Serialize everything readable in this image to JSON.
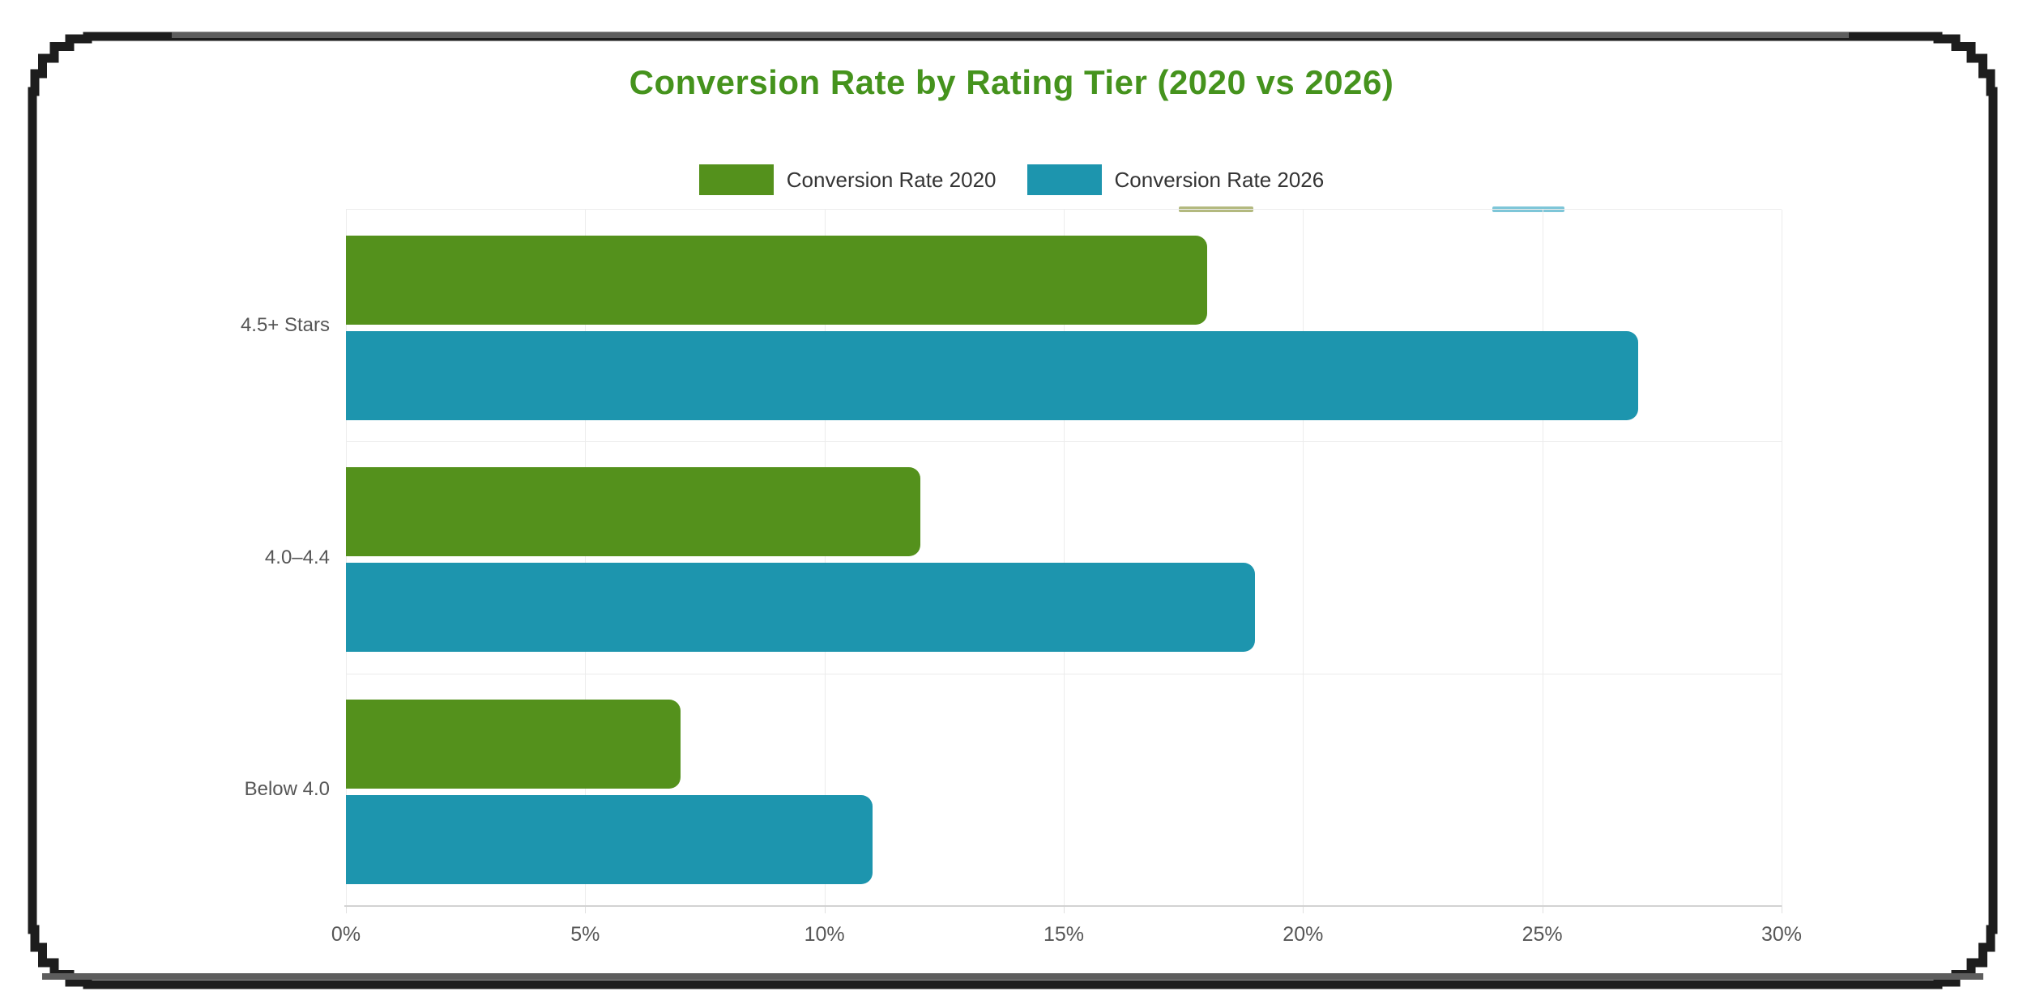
{
  "chart_data": {
    "type": "bar",
    "orientation": "horizontal",
    "title": "Conversion Rate by Rating Tier (2020 vs 2026)",
    "title_color": "#45931d",
    "categories": [
      "4.5+ Stars",
      "4.0–4.4",
      "Below 4.0"
    ],
    "series": [
      {
        "name": "Conversion Rate 2020",
        "color": "#54911c",
        "values": [
          18,
          12,
          7
        ]
      },
      {
        "name": "Conversion Rate 2026",
        "color": "#1d95ae",
        "values": [
          27,
          19,
          11
        ]
      }
    ],
    "x_axis": {
      "min": 0,
      "max": 30,
      "tick_step": 5,
      "unit": "%",
      "tick_labels": [
        "0%",
        "5%",
        "10%",
        "15%",
        "20%",
        "25%",
        "30%"
      ]
    },
    "grid": true,
    "legend_position": "top",
    "plot_background": "#ffffff"
  },
  "frame": {
    "border_color": "#1d1d1d",
    "accent_color": "#5d5d5d",
    "style": "pixel-stepped rounded rectangle"
  },
  "artifacts": {
    "ghost_green_color": "#b3b97f",
    "ghost_blue_color": "#7ec6d8"
  }
}
